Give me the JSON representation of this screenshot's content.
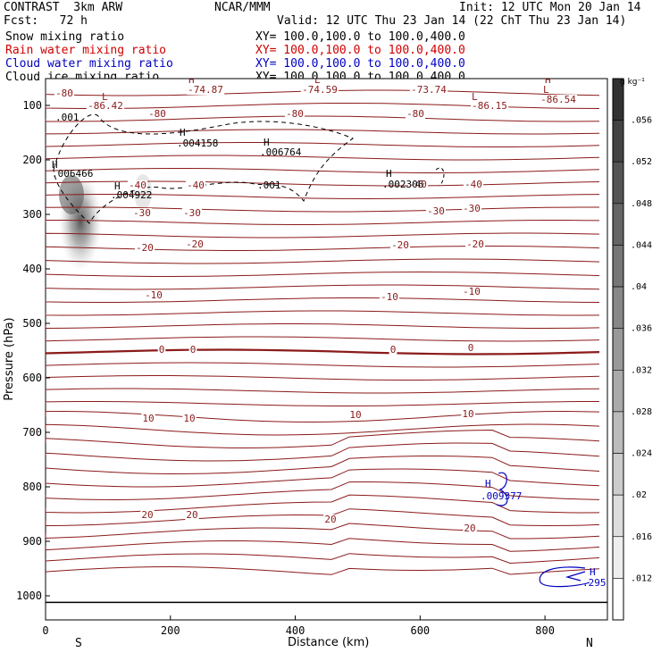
{
  "header": {
    "model": "CONTRAST  3km ARW",
    "org": "NCAR/MMM",
    "init": "Init: 12 UTC Mon 20 Jan 14",
    "fcst": "Fcst:   72 h",
    "valid": "Valid: 12 UTC Thu 23 Jan 14 (22 ChT Thu 23 Jan 14)"
  },
  "legend": [
    {
      "label": "Snow mixing ratio",
      "xy": "XY= 100.0,100.0 to 100.0,400.0",
      "color": "#000000"
    },
    {
      "label": "Rain water mixing ratio",
      "xy": "XY= 100.0,100.0 to 100.0,400.0",
      "color": "#d00000"
    },
    {
      "label": "Cloud water mixing ratio",
      "xy": "XY= 100.0,100.0 to 100.0,400.0",
      "color": "#0000c0"
    },
    {
      "label": "Cloud ice mixing ratio",
      "xy": "XY= 100.0,100.0 to 100.0,400.0",
      "color": "#000000"
    }
  ],
  "chart_data": {
    "type": "cross-section",
    "xlabel": "Distance (km)",
    "ylabel": "Pressure (hPa)",
    "xlim": [
      0,
      900
    ],
    "ylim": [
      1050,
      35
    ],
    "xticks": [
      "0",
      "200",
      "400",
      "600",
      "800"
    ],
    "yticks": [
      "100",
      "200",
      "300",
      "400",
      "500",
      "600",
      "700",
      "800",
      "900",
      "1000"
    ],
    "end_labels": {
      "left": "S",
      "right": "N"
    },
    "colorbar": {
      "unit": "g kg⁻¹",
      "ticks": [
        ".056",
        ".052",
        ".048",
        ".044",
        ".04",
        ".036",
        ".032",
        ".028",
        ".024",
        ".02",
        ".016",
        ".012"
      ]
    },
    "temperature_labels": [
      "-80",
      "-86.42",
      "-74.87",
      "-80",
      "-80",
      "-74.59",
      "-80",
      "-73.74",
      "-86.15",
      "-86.54",
      "-40",
      "-40",
      "-40",
      "-40",
      "-30",
      "-30",
      "-30",
      "-30",
      "-20",
      "-20",
      "-20",
      "-20",
      "-10",
      "-10",
      "-10",
      "0",
      "0",
      "0",
      "0",
      "10",
      "10",
      "10",
      "10",
      "20",
      "20",
      "20",
      "20"
    ],
    "maxima": [
      {
        "label": ".006466",
        "color": "#000000"
      },
      {
        "label": ".004922",
        "color": "#000000"
      },
      {
        "label": ".004158",
        "color": "#000000"
      },
      {
        "label": ".006764",
        "color": "#000000"
      },
      {
        "label": ".002306",
        "color": "#000000"
      },
      {
        "label": ".009377",
        "color": "#0000c0"
      },
      {
        "label": ".295",
        "color": "#0000c0"
      }
    ],
    "cloud_ice_contour_label": ".001",
    "highs": [
      "H",
      "H",
      "H",
      "H",
      "H",
      "H",
      "H",
      "H",
      "H"
    ],
    "lows": [
      "L",
      "L",
      "L",
      "L"
    ]
  }
}
